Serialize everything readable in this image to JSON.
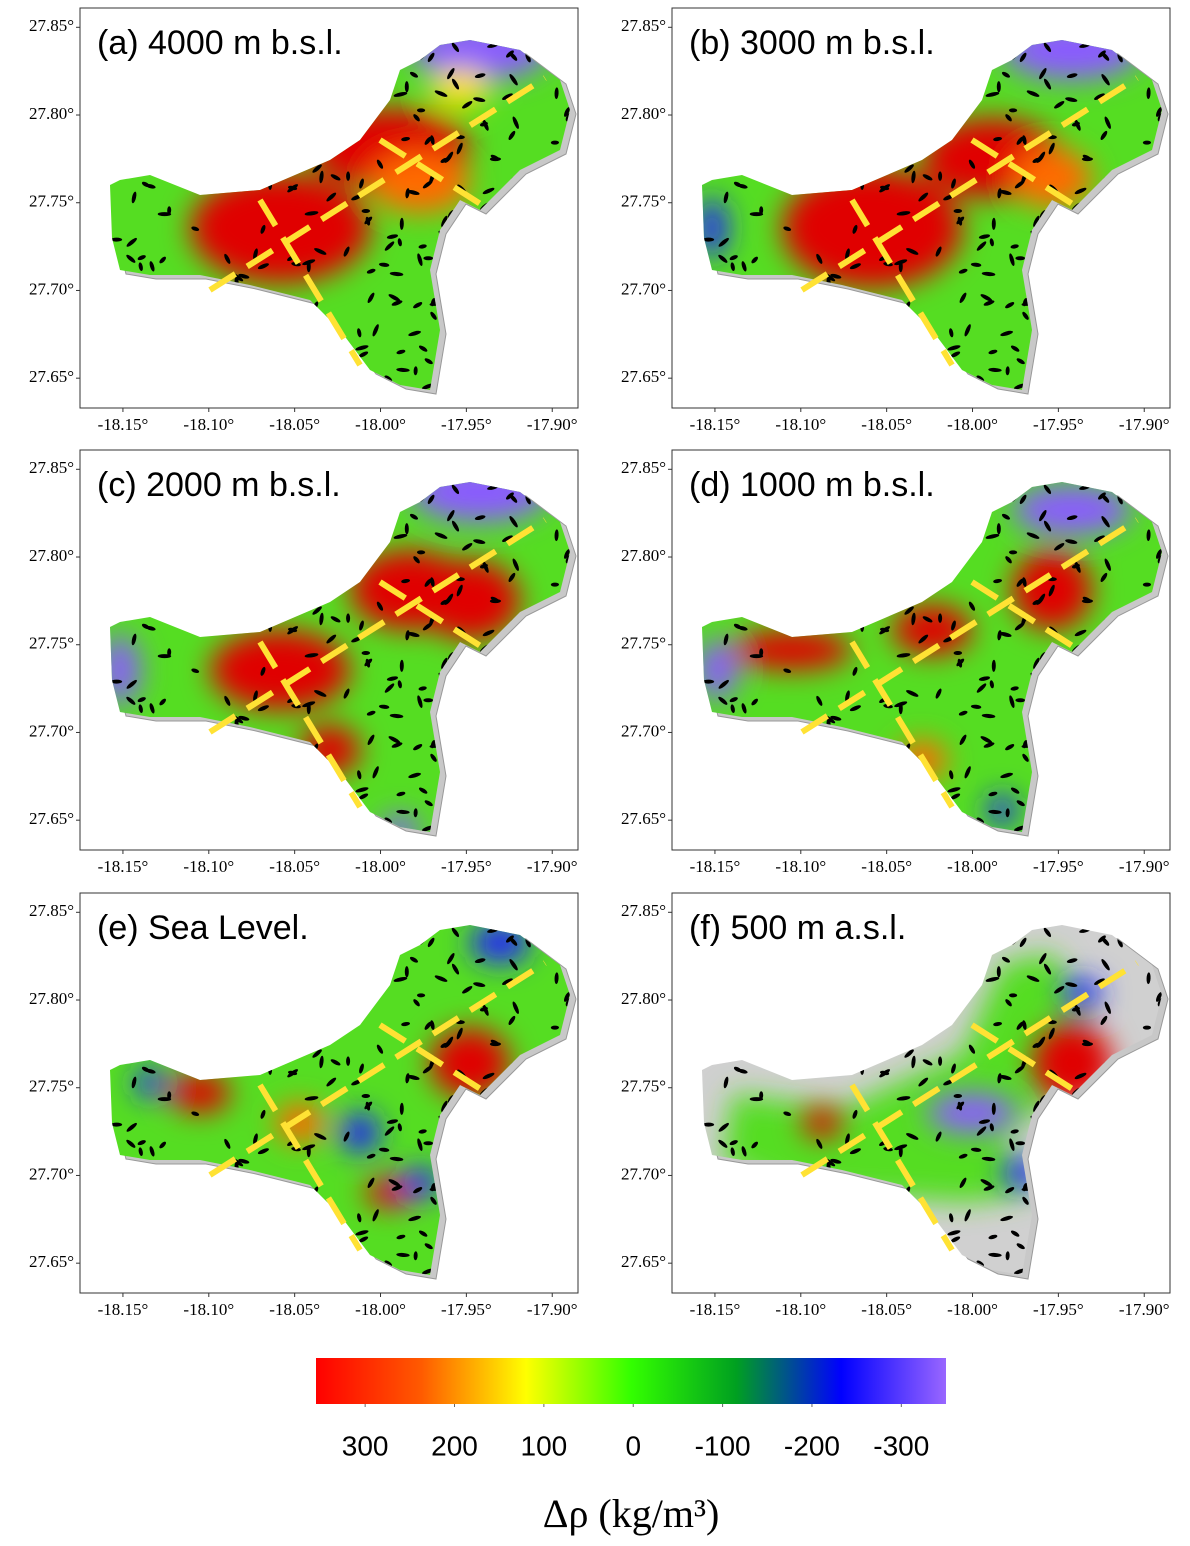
{
  "panels": [
    {
      "title": "(a) 4000 m b.s.l."
    },
    {
      "title": "(b) 3000 m b.s.l."
    },
    {
      "title": "(c) 2000 m b.s.l."
    },
    {
      "title": "(d) 1000 m b.s.l."
    },
    {
      "title": "(e) Sea Level."
    },
    {
      "title": "(f) 500 m a.s.l."
    }
  ],
  "map_axes": {
    "xlim": [
      -18.175,
      -17.885
    ],
    "ylim": [
      27.633,
      27.861
    ],
    "xticks": [
      {
        "value": -18.15,
        "label": "-18.15°"
      },
      {
        "value": -18.1,
        "label": "-18.10°"
      },
      {
        "value": -18.05,
        "label": "-18.05°"
      },
      {
        "value": -18.0,
        "label": "-18.00°"
      },
      {
        "value": -17.95,
        "label": "-17.95°"
      },
      {
        "value": -17.9,
        "label": "-17.90°"
      }
    ],
    "yticks": [
      {
        "value": 27.65,
        "label": "27.65°"
      },
      {
        "value": 27.7,
        "label": "27.70°"
      },
      {
        "value": 27.75,
        "label": "27.75°"
      },
      {
        "value": 27.8,
        "label": "27.80°"
      },
      {
        "value": 27.85,
        "label": "27.85°"
      }
    ]
  },
  "colorbar": {
    "colors": [
      "#ff0000",
      "#ff5a00",
      "#ffff00",
      "#33ff00",
      "#00a020",
      "#0000ff",
      "#9966ff"
    ],
    "lim": [
      355,
      -350
    ],
    "ticks": [
      300,
      200,
      100,
      0,
      -100,
      -200,
      -300
    ],
    "label": "Δρ (kg/m³)"
  }
}
